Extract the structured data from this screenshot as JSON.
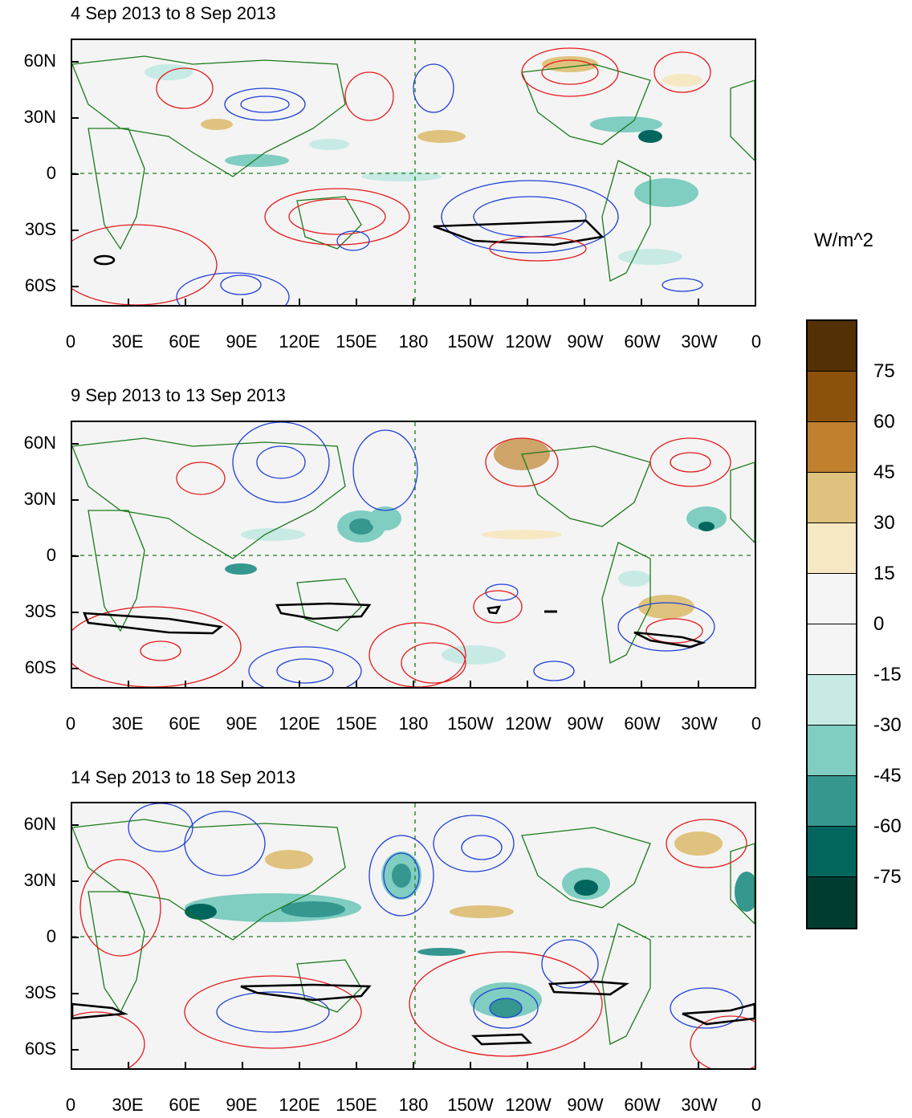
{
  "panels": [
    {
      "title": "4 Sep 2013 to 8 Sep 2013"
    },
    {
      "title": "9 Sep 2013 to 13 Sep 2013"
    },
    {
      "title": "14 Sep 2013 to 18 Sep 2013"
    }
  ],
  "lat_labels": [
    "60N",
    "30N",
    "0",
    "30S",
    "60S"
  ],
  "lon_labels": [
    "0",
    "30E",
    "60E",
    "90E",
    "120E",
    "150E",
    "180",
    "150W",
    "120W",
    "90W",
    "60W",
    "30W",
    "0"
  ],
  "colorbar": {
    "units": "W/m^2",
    "labels": [
      "75",
      "60",
      "45",
      "30",
      "15",
      "0",
      "-15",
      "-30",
      "-45",
      "-60",
      "-75"
    ],
    "colors": [
      "#543005",
      "#8c510a",
      "#bf812d",
      "#dfc27d",
      "#f6e8c3",
      "#f5f5f5",
      "#f5f5f5",
      "#c7eae5",
      "#80cdc1",
      "#35978f",
      "#01665e",
      "#003c30"
    ]
  },
  "colors": {
    "positive_contour": "#e31a1c",
    "negative_contour": "#1f3fd6",
    "highlight_contour": "#000000",
    "coastline": "#1a7a1a"
  }
}
